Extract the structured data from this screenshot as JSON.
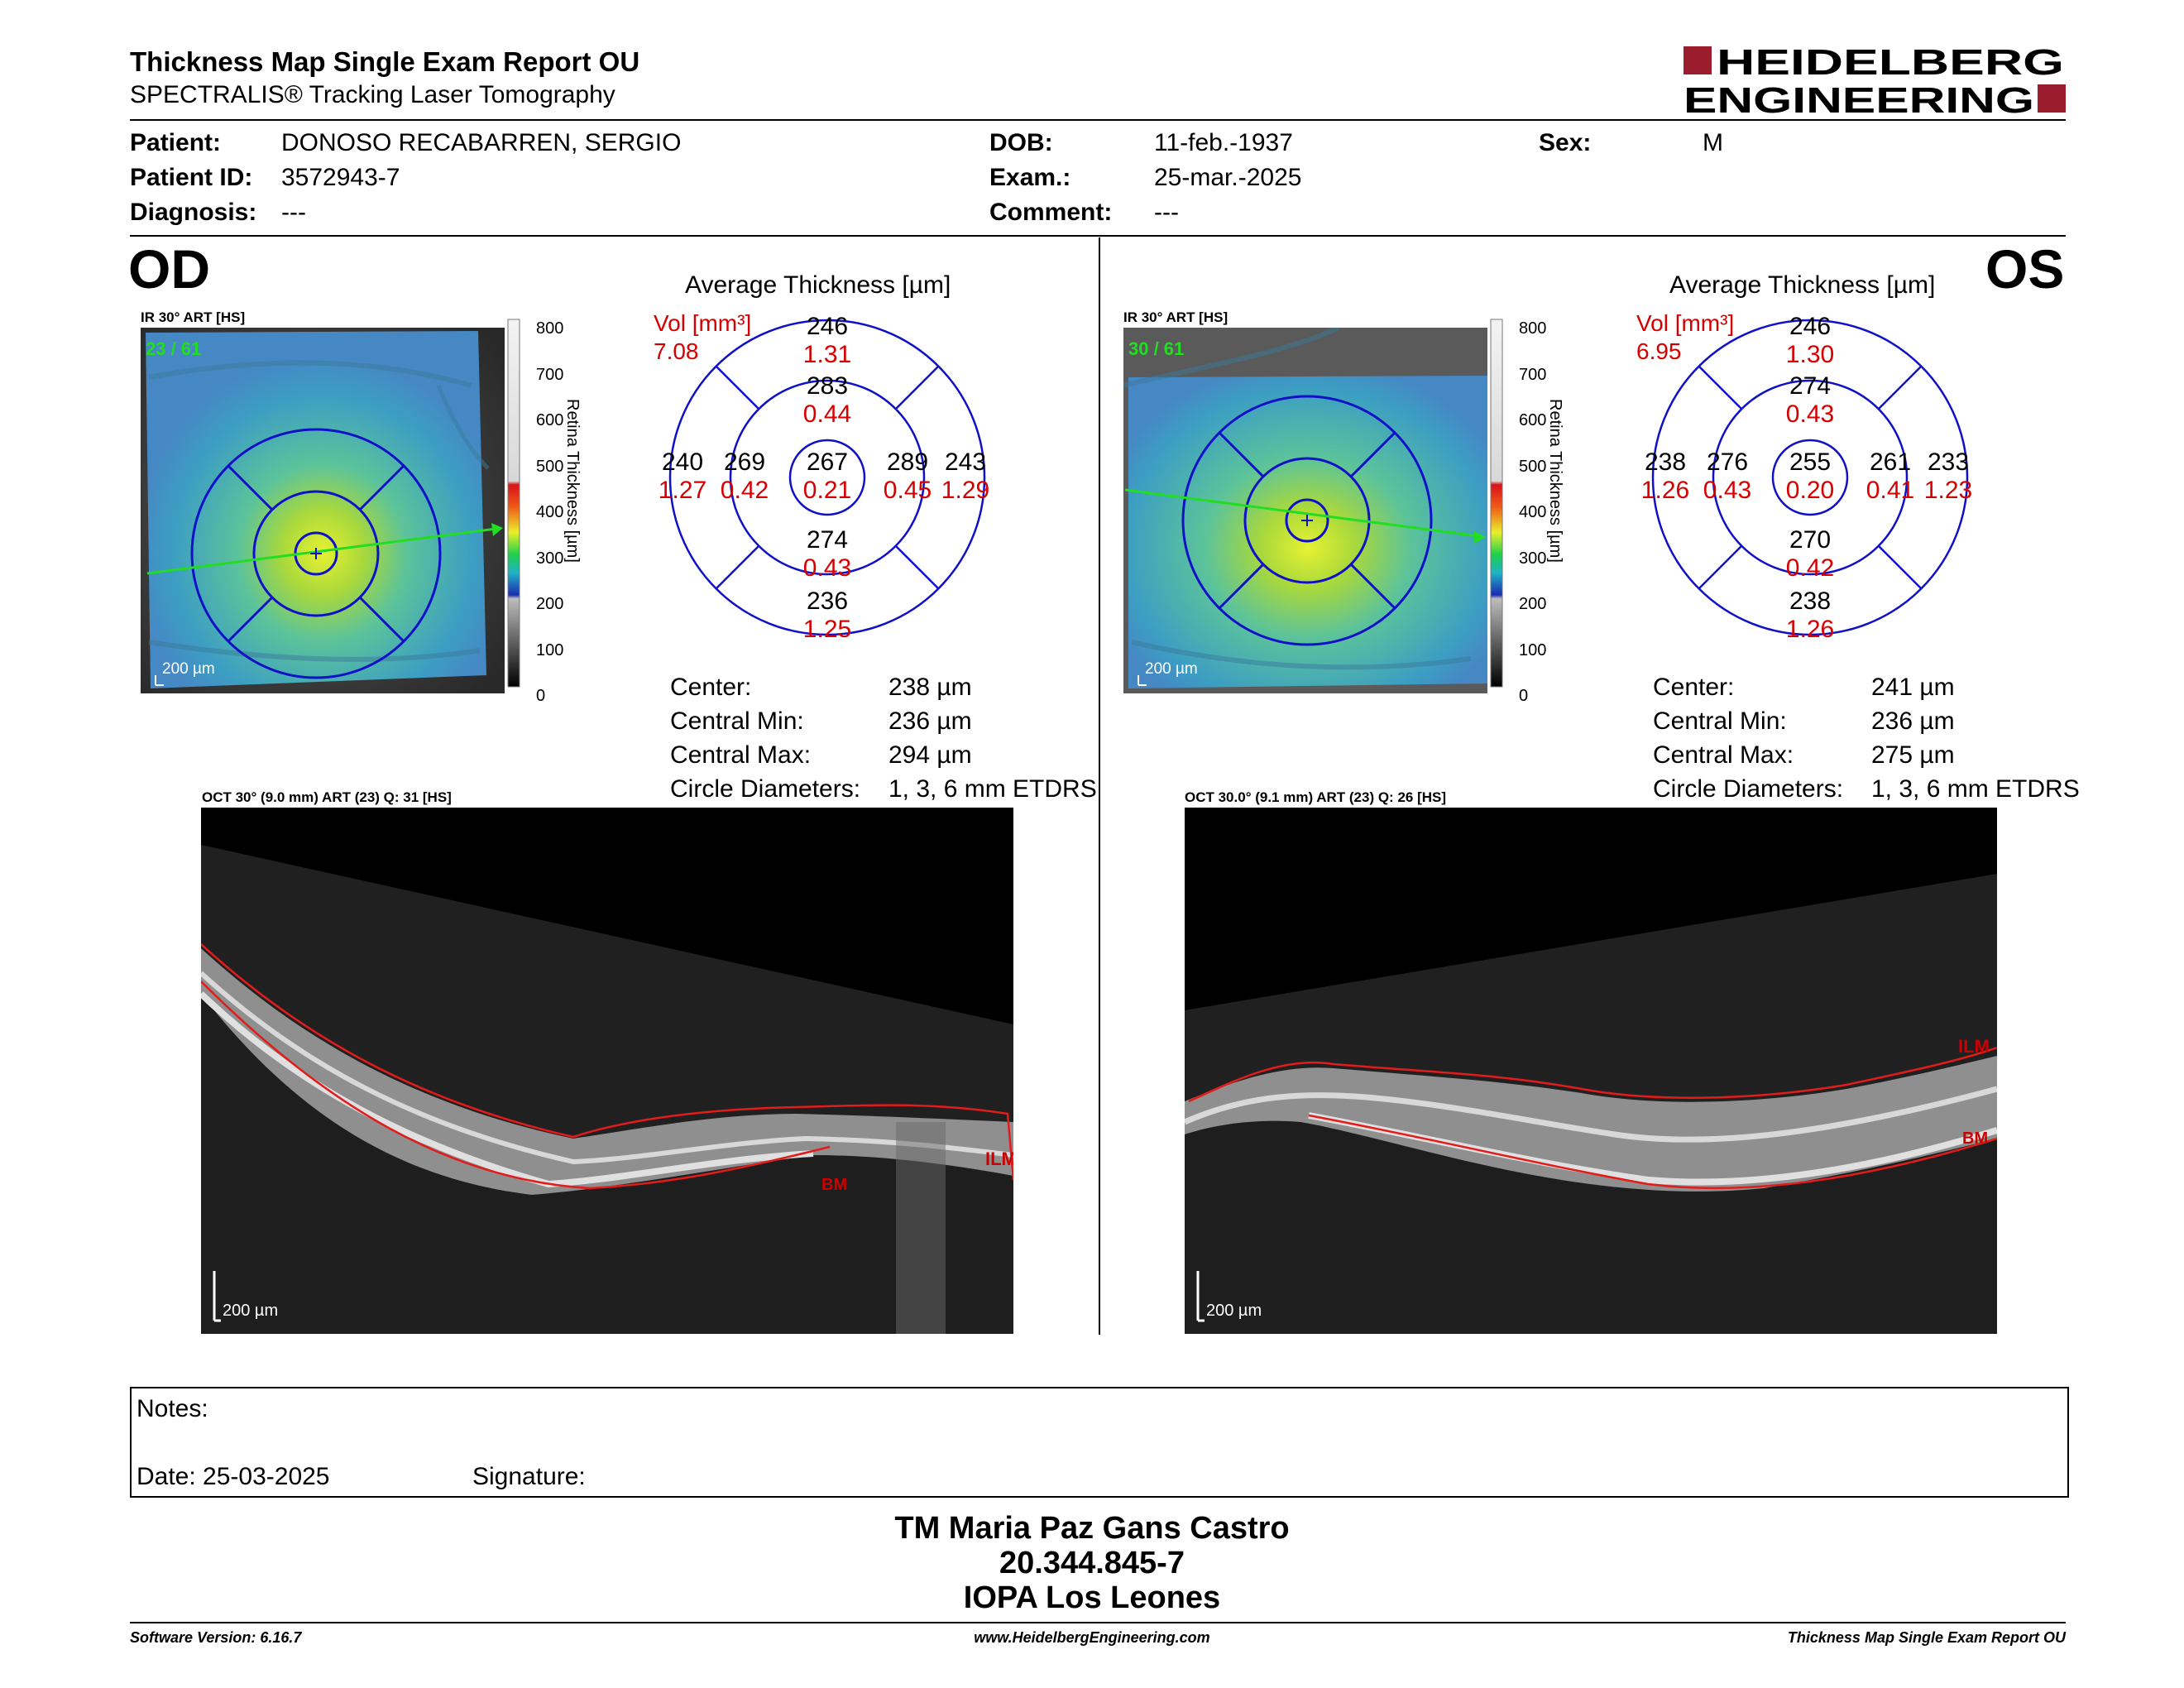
{
  "report": {
    "title": "Thickness Map Single Exam Report OU",
    "subtitle": "SPECTRALIS® Tracking Laser Tomography",
    "logo_line1": "HEIDELBERG",
    "logo_line2": "ENGINEERING",
    "brand_color": "#9b1c2c"
  },
  "patient": {
    "patient_label": "Patient:",
    "patient_value": "DONOSO RECABARREN, SERGIO",
    "id_label": "Patient ID:",
    "id_value": "3572943-7",
    "diagnosis_label": "Diagnosis:",
    "diagnosis_value": "---",
    "dob_label": "DOB:",
    "dob_value": "11-feb.-1937",
    "exam_label": "Exam.:",
    "exam_value": "25-mar.-2025",
    "comment_label": "Comment:",
    "comment_value": "---",
    "sex_label": "Sex:",
    "sex_value": "M"
  },
  "scale": {
    "ticks": [
      "800",
      "700",
      "600",
      "500",
      "400",
      "300",
      "200",
      "100",
      "0"
    ],
    "title": "Retina Thickness [µm]"
  },
  "od": {
    "eye": "OD",
    "ir_label": "IR 30° ART [HS]",
    "frames": "23 / 61",
    "scalebar": "200 µm",
    "avg_title": "Average Thickness [µm]",
    "vol_label": "Vol [mm³]",
    "vol_value": "7.08",
    "grid": {
      "outer_top": {
        "t": "246",
        "v": "1.31"
      },
      "inner_top": {
        "t": "283",
        "v": "0.44"
      },
      "outer_left": {
        "t": "240",
        "v": "1.27"
      },
      "inner_left": {
        "t": "269",
        "v": "0.42"
      },
      "center": {
        "t": "267",
        "v": "0.21"
      },
      "inner_right": {
        "t": "289",
        "v": "0.45"
      },
      "outer_right": {
        "t": "243",
        "v": "1.29"
      },
      "inner_bottom": {
        "t": "274",
        "v": "0.43"
      },
      "outer_bottom": {
        "t": "236",
        "v": "1.25"
      }
    },
    "stats": [
      {
        "label": "Center:",
        "value": "238 µm"
      },
      {
        "label": "Central Min:",
        "value": "236 µm"
      },
      {
        "label": "Central Max:",
        "value": "294 µm"
      },
      {
        "label": "Circle Diameters:",
        "value": "1, 3, 6 mm ETDRS"
      }
    ],
    "oct_label": "OCT 30° (9.0 mm) ART (23) Q: 31 [HS]",
    "ilm": "ILM",
    "bm": "BM",
    "oct_scalebar": "200 µm"
  },
  "os": {
    "eye": "OS",
    "ir_label": "IR 30° ART [HS]",
    "frames": "30 / 61",
    "scalebar": "200 µm",
    "avg_title": "Average Thickness [µm]",
    "vol_label": "Vol [mm³]",
    "vol_value": "6.95",
    "grid": {
      "outer_top": {
        "t": "246",
        "v": "1.30"
      },
      "inner_top": {
        "t": "274",
        "v": "0.43"
      },
      "outer_left": {
        "t": "238",
        "v": "1.26"
      },
      "inner_left": {
        "t": "276",
        "v": "0.43"
      },
      "center": {
        "t": "255",
        "v": "0.20"
      },
      "inner_right": {
        "t": "261",
        "v": "0.41"
      },
      "outer_right": {
        "t": "233",
        "v": "1.23"
      },
      "inner_bottom": {
        "t": "270",
        "v": "0.42"
      },
      "outer_bottom": {
        "t": "238",
        "v": "1.26"
      }
    },
    "stats": [
      {
        "label": "Center:",
        "value": "241 µm"
      },
      {
        "label": "Central Min:",
        "value": "236 µm"
      },
      {
        "label": "Central Max:",
        "value": "275 µm"
      },
      {
        "label": "Circle Diameters:",
        "value": "1, 3, 6 mm ETDRS"
      }
    ],
    "oct_label": "OCT 30.0° (9.1 mm) ART (23) Q: 26 [HS]",
    "ilm": "ILM",
    "bm": "BM",
    "oct_scalebar": "200 µm"
  },
  "notes": {
    "notes_label": "Notes:",
    "date_label": "Date: 25-03-2025",
    "signature_label": "Signature:"
  },
  "signatory": {
    "name": "TM Maria Paz Gans Castro",
    "rut": "20.344.845-7",
    "institution": "IOPA Los Leones"
  },
  "footer": {
    "software": "Software Version: 6.16.7",
    "website": "www.HeidelbergEngineering.com",
    "report_name": "Thickness Map Single Exam Report OU"
  }
}
